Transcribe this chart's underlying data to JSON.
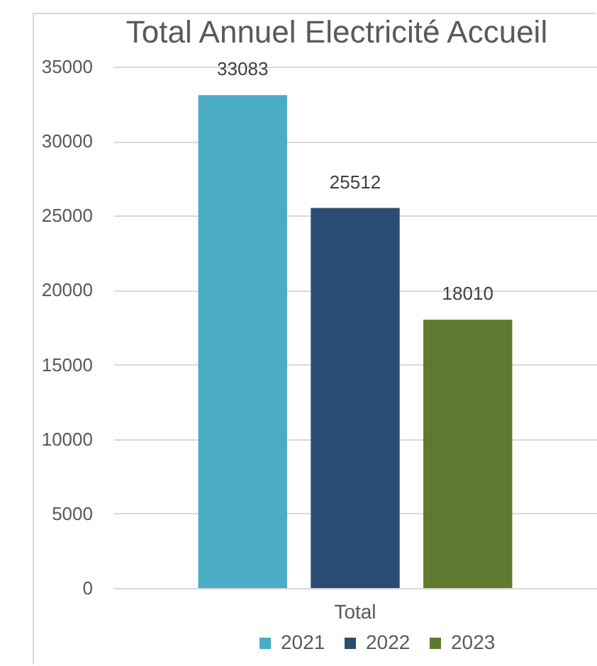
{
  "chart_data": {
    "type": "bar",
    "title": "Total Annuel Electricité  Accueil",
    "categories": [
      "Total"
    ],
    "series": [
      {
        "name": "2021",
        "color": "#4bacc6",
        "values": [
          33083
        ]
      },
      {
        "name": "2022",
        "color": "#2b4c72",
        "values": [
          25512
        ]
      },
      {
        "name": "2023",
        "color": "#5f7a30",
        "values": [
          18010
        ]
      }
    ],
    "ylim": [
      0,
      35000
    ],
    "yticks": [
      0,
      5000,
      10000,
      15000,
      20000,
      25000,
      30000,
      35000
    ],
    "grid": "y",
    "legend": "bottom",
    "data_labels": true
  }
}
